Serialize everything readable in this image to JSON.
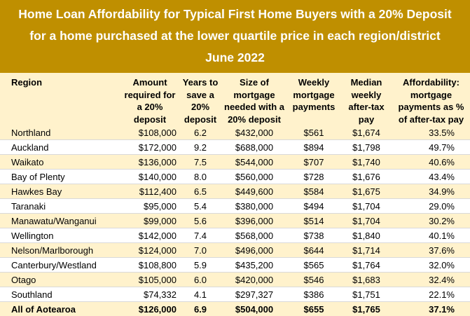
{
  "title": {
    "line1": "Home Loan Affordability for Typical First Home Buyers with a 20% Deposit",
    "line2": "for a home purchased at the lower quartile price in each region/district",
    "line3": "June 2022"
  },
  "columns": {
    "region": "Region",
    "amount": "Amount required for a 20% deposit",
    "years": "Years to save a 20% deposit",
    "mortgage": "Size of mortgage needed with a 20% deposit",
    "weekly": "Weekly mortgage payments",
    "income": "Median weekly after-tax pay",
    "afford": "Affordability: mortgage payments as % of after-tax pay"
  },
  "rows": [
    {
      "region": "Northland",
      "amount": "$108,000",
      "years": "6.2",
      "mortgage": "$432,000",
      "weekly": "$561",
      "income": "$1,674",
      "afford": "33.5%"
    },
    {
      "region": "Auckland",
      "amount": "$172,000",
      "years": "9.2",
      "mortgage": "$688,000",
      "weekly": "$894",
      "income": "$1,798",
      "afford": "49.7%"
    },
    {
      "region": "Waikato",
      "amount": "$136,000",
      "years": "7.5",
      "mortgage": "$544,000",
      "weekly": "$707",
      "income": "$1,740",
      "afford": "40.6%"
    },
    {
      "region": "Bay of Plenty",
      "amount": "$140,000",
      "years": "8.0",
      "mortgage": "$560,000",
      "weekly": "$728",
      "income": "$1,676",
      "afford": "43.4%"
    },
    {
      "region": "Hawkes Bay",
      "amount": "$112,400",
      "years": "6.5",
      "mortgage": "$449,600",
      "weekly": "$584",
      "income": "$1,675",
      "afford": "34.9%"
    },
    {
      "region": "Taranaki",
      "amount": "$95,000",
      "years": "5.4",
      "mortgage": "$380,000",
      "weekly": "$494",
      "income": "$1,704",
      "afford": "29.0%"
    },
    {
      "region": "Manawatu/Wanganui",
      "amount": "$99,000",
      "years": "5.6",
      "mortgage": "$396,000",
      "weekly": "$514",
      "income": "$1,704",
      "afford": "30.2%"
    },
    {
      "region": "Wellington",
      "amount": "$142,000",
      "years": "7.4",
      "mortgage": "$568,000",
      "weekly": "$738",
      "income": "$1,840",
      "afford": "40.1%"
    },
    {
      "region": "Nelson/Marlborough",
      "amount": "$124,000",
      "years": "7.0",
      "mortgage": "$496,000",
      "weekly": "$644",
      "income": "$1,714",
      "afford": "37.6%"
    },
    {
      "region": "Canterbury/Westland",
      "amount": "$108,800",
      "years": "5.9",
      "mortgage": "$435,200",
      "weekly": "$565",
      "income": "$1,764",
      "afford": "32.0%"
    },
    {
      "region": "Otago",
      "amount": "$105,000",
      "years": "6.0",
      "mortgage": "$420,000",
      "weekly": "$546",
      "income": "$1,683",
      "afford": "32.4%"
    },
    {
      "region": "Southland",
      "amount": "$74,332",
      "years": "4.1",
      "mortgage": "$297,327",
      "weekly": "$386",
      "income": "$1,751",
      "afford": "22.1%"
    }
  ],
  "total": {
    "region": "All of Aotearoa",
    "amount": "$126,000",
    "years": "6.9",
    "mortgage": "$504,000",
    "weekly": "$655",
    "income": "$1,765",
    "afford": "37.1%"
  },
  "colors": {
    "title_bg": "#bf8f00",
    "band": "#fff2cc"
  }
}
